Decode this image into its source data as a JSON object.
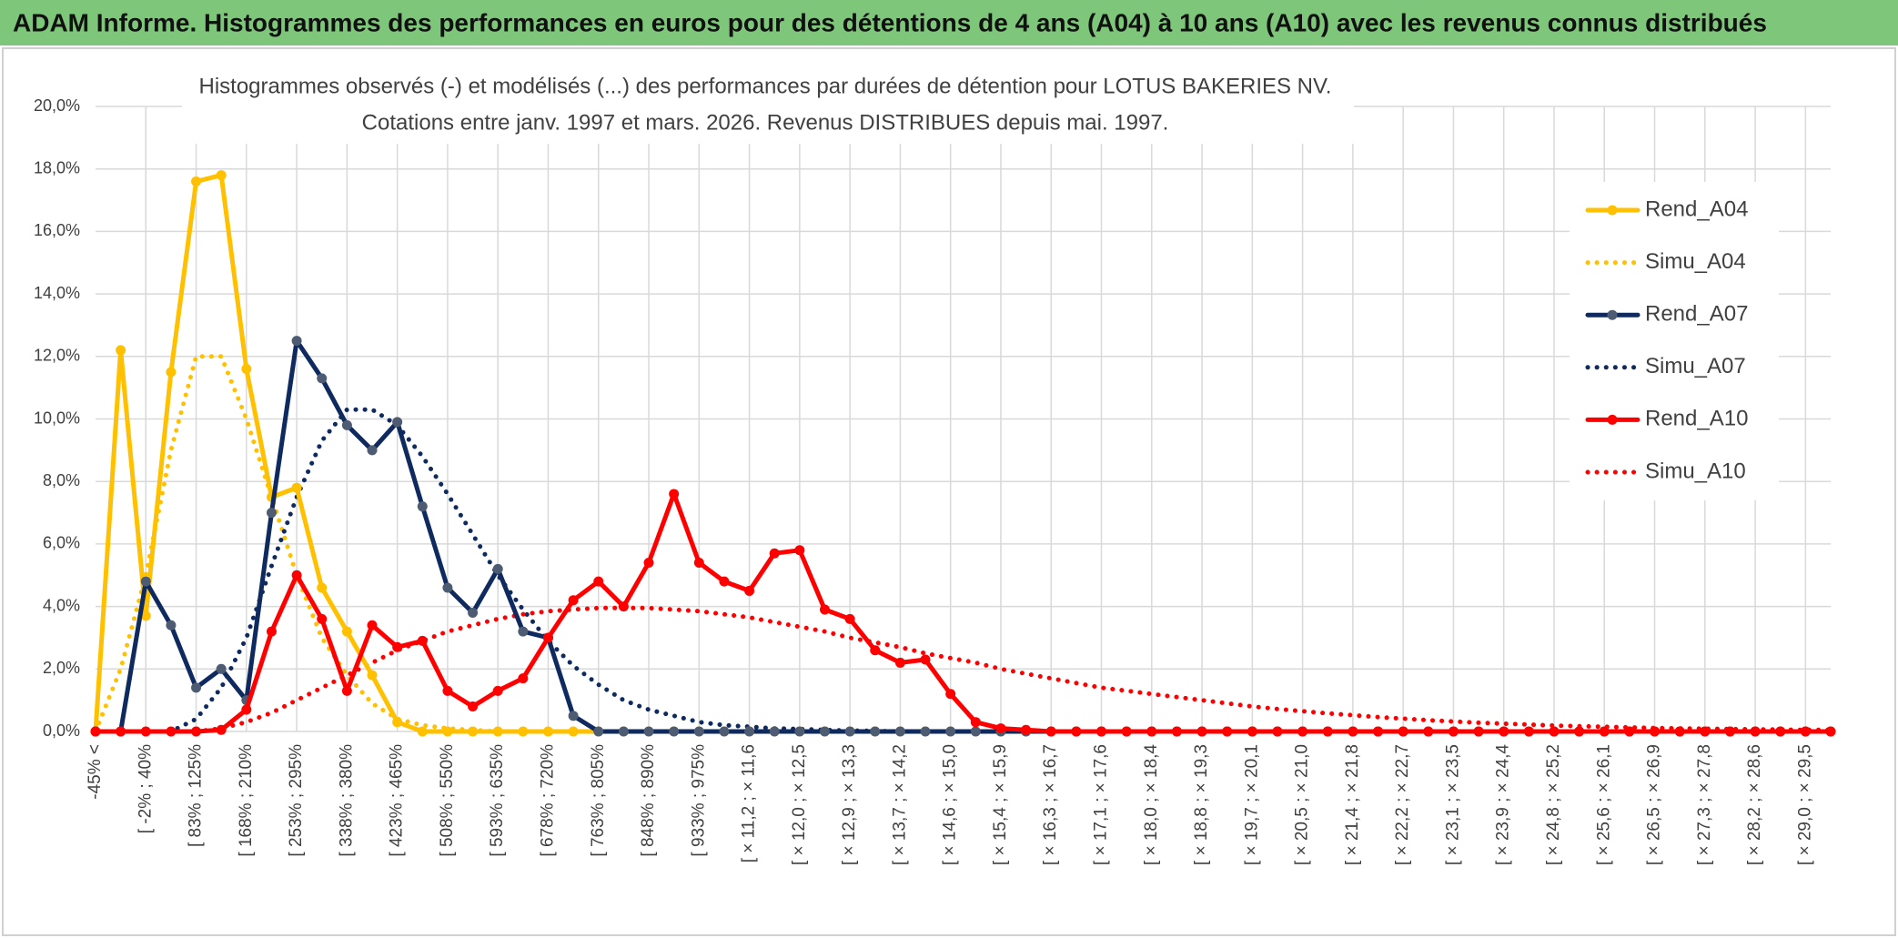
{
  "header": {
    "title": "ADAM Informe. Histogrammes des performances en euros pour des détentions de 4 ans (A04) à 10 ans (A10) avec les revenus connus distribués"
  },
  "chart_data": {
    "type": "line",
    "title": "Histogrammes observés (-) et modélisés (...) des performances par durées de détention pour LOTUS BAKERIES NV.",
    "subtitle": "Cotations entre janv. 1997 et mars. 2026. Revenus DISTRIBUES depuis mai. 1997.",
    "categories": [
      "-45% <",
      null,
      "[ -2% ; 40%",
      null,
      "[ 83% ; 125%",
      null,
      "[ 168% ; 210%",
      null,
      "[ 253% ; 295%",
      null,
      "[ 338% ; 380%",
      null,
      "[ 423% ; 465%",
      null,
      "[ 508% ; 550%",
      null,
      "[ 593% ; 635%",
      null,
      "[ 678% ; 720%",
      null,
      "[ 763% ; 805%",
      null,
      "[ 848% ; 890%",
      null,
      "[ 933% ; 975%",
      null,
      "[ × 11,2 ; × 11,6",
      null,
      "[ × 12,0 ; × 12,5",
      null,
      "[ × 12,9 ; × 13,3",
      null,
      "[ × 13,7 ; × 14,2",
      null,
      "[ × 14,6 ; × 15,0",
      null,
      "[ × 15,4 ; × 15,9",
      null,
      "[ × 16,3 ; × 16,7",
      null,
      "[ × 17,1 ; × 17,6",
      null,
      "[ × 18,0 ; × 18,4",
      null,
      "[ × 18,8 ; × 19,3",
      null,
      "[ × 19,7 ; × 20,1",
      null,
      "[ × 20,5 ; × 21,0",
      null,
      "[ × 21,4 ; × 21,8",
      null,
      "[ × 22,2 ; × 22,7",
      null,
      "[ × 23,1 ; × 23,5",
      null,
      "[ × 23,9 ; × 24,4",
      null,
      "[ × 24,8 ; × 25,2",
      null,
      "[ × 25,6 ; × 26,1",
      null,
      "[ × 26,5 ; × 26,9",
      null,
      "[ × 27,3 ; × 27,8",
      null,
      "[ × 28,2 ; × 28,6",
      null,
      "[ × 29,0 ; × 29,5",
      null
    ],
    "series": [
      {
        "name": "Rend_A04",
        "color": "#ffc000",
        "style": "solid",
        "values": [
          0,
          12.2,
          3.7,
          11.5,
          17.6,
          17.8,
          11.6,
          7.5,
          7.8,
          4.6,
          3.2,
          1.8,
          0.3,
          0,
          0,
          0,
          0,
          0,
          0,
          0,
          0,
          0,
          0,
          0,
          0,
          0,
          0,
          0,
          0,
          0,
          0,
          0,
          0,
          0,
          0,
          0,
          0,
          0,
          0,
          0,
          0,
          0,
          0,
          0,
          0,
          0,
          0,
          0,
          0,
          0,
          0,
          0,
          0,
          0,
          0,
          0,
          0,
          0,
          0,
          0,
          0,
          0,
          0,
          0,
          0,
          0,
          0,
          0,
          0,
          0
        ]
      },
      {
        "name": "Simu_A04",
        "color": "#ffc000",
        "style": "dotted",
        "values": [
          0,
          2,
          5,
          9,
          12,
          12,
          10,
          7.5,
          5,
          3,
          1.8,
          0.9,
          0.4,
          0.2,
          0.1,
          0.05,
          0,
          0,
          0,
          0,
          0,
          0,
          0,
          0,
          0,
          0,
          0,
          0,
          0,
          0,
          0,
          0,
          0,
          0,
          0,
          0,
          0,
          0,
          0,
          0,
          0,
          0,
          0,
          0,
          0,
          0,
          0,
          0,
          0,
          0,
          0,
          0,
          0,
          0,
          0,
          0,
          0,
          0,
          0,
          0,
          0,
          0,
          0,
          0,
          0,
          0,
          0,
          0,
          0,
          0
        ]
      },
      {
        "name": "Rend_A07",
        "color": "#0e2a5e",
        "style": "solid",
        "values": [
          0,
          0,
          4.8,
          3.4,
          1.4,
          2.0,
          1.0,
          7.0,
          12.5,
          11.3,
          9.8,
          9.0,
          9.9,
          7.2,
          4.6,
          3.8,
          5.2,
          3.2,
          3.0,
          0.5,
          0,
          0,
          0,
          0,
          0,
          0,
          0,
          0,
          0,
          0,
          0,
          0,
          0,
          0,
          0,
          0,
          0,
          0,
          0,
          0,
          0,
          0,
          0,
          0,
          0,
          0,
          0,
          0,
          0,
          0,
          0,
          0,
          0,
          0,
          0,
          0,
          0,
          0,
          0,
          0,
          0,
          0,
          0,
          0,
          0,
          0,
          0,
          0,
          0,
          0
        ]
      },
      {
        "name": "Simu_A07",
        "color": "#0e2a5e",
        "style": "dotted",
        "values": [
          0,
          0,
          0,
          0,
          0.4,
          1.4,
          3.0,
          5.3,
          7.5,
          9.3,
          10.3,
          10.3,
          9.8,
          8.8,
          7.6,
          6.3,
          5.0,
          3.9,
          2.9,
          2.1,
          1.5,
          1.0,
          0.7,
          0.5,
          0.3,
          0.2,
          0.15,
          0.1,
          0.08,
          0.05,
          0.03,
          0.02,
          0,
          0,
          0,
          0,
          0,
          0,
          0,
          0,
          0,
          0,
          0,
          0,
          0,
          0,
          0,
          0,
          0,
          0,
          0,
          0,
          0,
          0,
          0,
          0,
          0,
          0,
          0,
          0,
          0,
          0,
          0,
          0,
          0,
          0,
          0,
          0,
          0,
          0
        ]
      },
      {
        "name": "Rend_A10",
        "color": "#ff0000",
        "style": "solid",
        "values": [
          0,
          0,
          0,
          0,
          0,
          0.05,
          0.7,
          3.2,
          5.0,
          3.6,
          1.3,
          3.4,
          2.7,
          2.9,
          1.3,
          0.8,
          1.3,
          1.7,
          3.0,
          4.2,
          4.8,
          4.0,
          5.4,
          7.6,
          5.4,
          4.8,
          4.5,
          5.7,
          5.8,
          3.9,
          3.6,
          2.6,
          2.2,
          2.3,
          1.2,
          0.3,
          0.1,
          0.05,
          0,
          0,
          0,
          0,
          0,
          0,
          0,
          0,
          0,
          0,
          0,
          0,
          0,
          0,
          0,
          0,
          0,
          0,
          0,
          0,
          0,
          0,
          0,
          0,
          0,
          0,
          0,
          0,
          0,
          0,
          0,
          0
        ]
      },
      {
        "name": "Simu_A10",
        "color": "#ff0000",
        "style": "dotted",
        "values": [
          0,
          0,
          0,
          0,
          0,
          0.1,
          0.3,
          0.6,
          1.0,
          1.4,
          1.8,
          2.2,
          2.6,
          2.9,
          3.2,
          3.4,
          3.6,
          3.75,
          3.85,
          3.9,
          3.95,
          3.95,
          3.95,
          3.9,
          3.85,
          3.75,
          3.65,
          3.5,
          3.35,
          3.2,
          3.0,
          2.85,
          2.7,
          2.5,
          2.35,
          2.2,
          2.0,
          1.85,
          1.7,
          1.55,
          1.4,
          1.3,
          1.2,
          1.1,
          1.0,
          0.9,
          0.8,
          0.72,
          0.65,
          0.58,
          0.52,
          0.46,
          0.41,
          0.36,
          0.32,
          0.28,
          0.25,
          0.22,
          0.19,
          0.17,
          0.15,
          0.13,
          0.11,
          0.1,
          0.09,
          0.08,
          0.07,
          0.06,
          0.05,
          0.05
        ]
      }
    ],
    "ylim": [
      0,
      20
    ],
    "yticks": [
      {
        "value": 0,
        "label": "0,0%"
      },
      {
        "value": 2,
        "label": "2,0%"
      },
      {
        "value": 4,
        "label": "4,0%"
      },
      {
        "value": 6,
        "label": "6,0%"
      },
      {
        "value": 8,
        "label": "8,0%"
      },
      {
        "value": 10,
        "label": "10,0%"
      },
      {
        "value": 12,
        "label": "12,0%"
      },
      {
        "value": 14,
        "label": "14,0%"
      },
      {
        "value": 16,
        "label": "16,0%"
      },
      {
        "value": 18,
        "label": "18,0%"
      },
      {
        "value": 20,
        "label": "20,0%"
      }
    ],
    "grid": true,
    "legend": "right"
  }
}
